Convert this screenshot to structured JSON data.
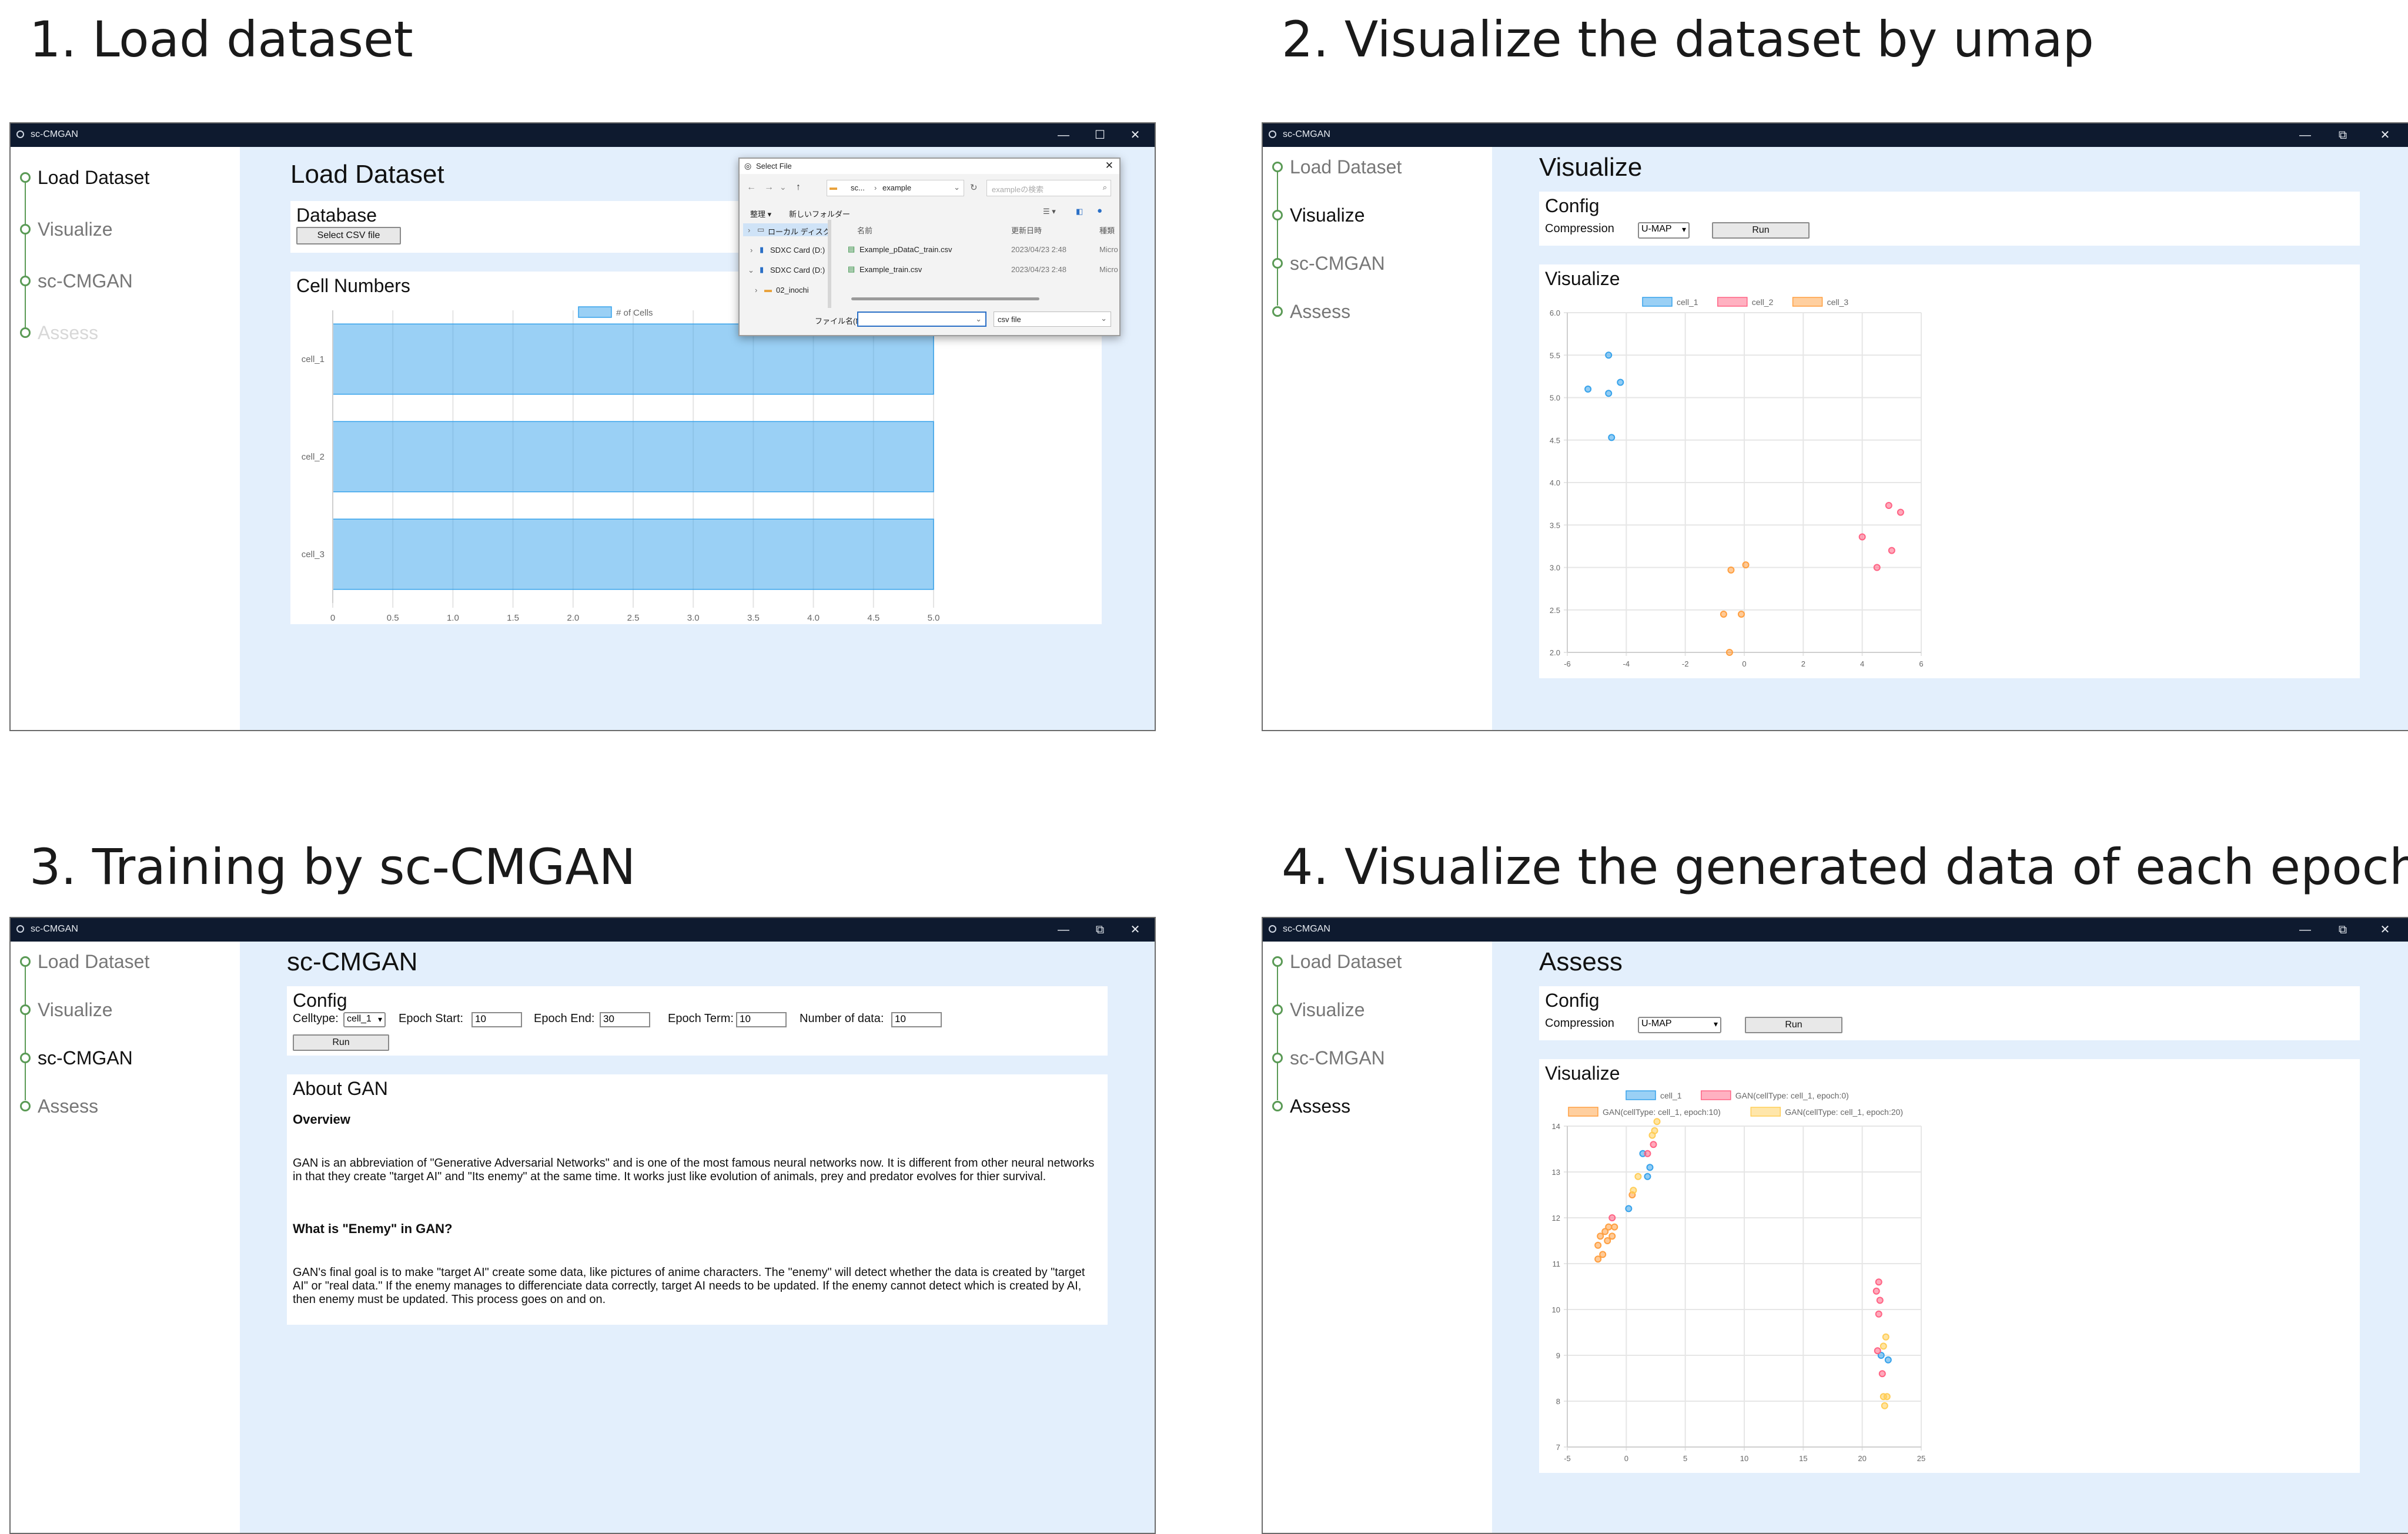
{
  "app_title": "sc-CMGAN",
  "window_controls": {
    "minimize": "—",
    "maximize": "☐",
    "restore": "⧉",
    "close": "✕"
  },
  "steps": [
    {
      "title": "1. Load dataset"
    },
    {
      "title": "2. Visualize the dataset by umap"
    },
    {
      "title": "3. Training by sc-CMGAN"
    },
    {
      "title": "4. Visualize the generated data of each epoch"
    }
  ],
  "nav": [
    "Load Dataset",
    "Visualize",
    "sc-CMGAN",
    "Assess"
  ],
  "colors": {
    "cell_1": "#36a2eb",
    "cell_2": "#ff6384",
    "cell_3": "#ff9f40",
    "gan_epoch20": "#ffcd56",
    "accent": "#5a9a55",
    "main_bg": "#e3effc"
  },
  "panel1": {
    "page_title": "Load Dataset",
    "database_title": "Database",
    "select_csv_label": "Select CSV file",
    "cell_numbers_title": "Cell Numbers",
    "dialog": {
      "title": "Select File",
      "path_1": "sc...",
      "path_2": "example",
      "search_placeholder": "exampleの検索",
      "organize": "整理 ▾",
      "new_folder": "新しいフォルダー",
      "col_name": "名前",
      "col_date": "更新日時",
      "col_type": "種類",
      "tree": [
        "ローカル ディスク",
        "SDXC Card (D:)",
        "SDXC Card (D:)",
        "02_inochi"
      ],
      "files": [
        {
          "name": "Example_pDataC_train.csv",
          "date": "2023/04/23 2:48",
          "type": "Micro"
        },
        {
          "name": "Example_train.csv",
          "date": "2023/04/23 2:48",
          "type": "Micro"
        }
      ],
      "filename_label": "ファイル名(N):",
      "filetype": "csv file"
    },
    "chart_data": {
      "type": "bar",
      "orientation": "horizontal",
      "categories": [
        "cell_1",
        "cell_2",
        "cell_3"
      ],
      "series": [
        {
          "name": "# of Cells",
          "values": [
            5,
            5,
            5
          ]
        }
      ],
      "xlim": [
        0,
        5
      ],
      "xticks": [
        "0",
        "0.5",
        "1.0",
        "1.5",
        "2.0",
        "2.5",
        "3.0",
        "3.5",
        "4.0",
        "4.5",
        "5.0"
      ],
      "grid": true,
      "legend": "top"
    }
  },
  "panel2": {
    "page_title": "Visualize",
    "config_title": "Config",
    "compression_label": "Compression",
    "compression_value": "U-MAP",
    "run_label": "Run",
    "visualize_title": "Visualize",
    "chart_data": {
      "type": "scatter",
      "series": [
        {
          "name": "cell_1",
          "points": [
            [
              -4.6,
              5.5
            ],
            [
              -4.2,
              5.18
            ],
            [
              -5.3,
              5.1
            ],
            [
              -4.6,
              5.05
            ],
            [
              -4.5,
              4.53
            ]
          ]
        },
        {
          "name": "cell_2",
          "points": [
            [
              4.9,
              3.73
            ],
            [
              5.3,
              3.65
            ],
            [
              4.0,
              3.36
            ],
            [
              5.0,
              3.2
            ],
            [
              4.5,
              3.0
            ]
          ]
        },
        {
          "name": "cell_3",
          "points": [
            [
              0.05,
              3.03
            ],
            [
              -0.45,
              2.97
            ],
            [
              -0.7,
              2.45
            ],
            [
              -0.1,
              2.45
            ],
            [
              -0.5,
              2.0
            ]
          ]
        }
      ],
      "xlim": [
        -6,
        6
      ],
      "ylim": [
        2.0,
        6.0
      ],
      "xticks": [
        "-6",
        "-4",
        "-2",
        "0",
        "2",
        "4",
        "6"
      ],
      "yticks": [
        "2.0",
        "2.5",
        "3.0",
        "3.5",
        "4.0",
        "4.5",
        "5.0",
        "5.5",
        "6.0"
      ],
      "grid": true,
      "legend": "top"
    }
  },
  "panel3": {
    "page_title": "sc-CMGAN",
    "config_title": "Config",
    "celltype_label": "Celltype:",
    "celltype_value": "cell_1",
    "epoch_start_label": "Epoch Start:",
    "epoch_start_value": "10",
    "epoch_end_label": "Epoch End:",
    "epoch_end_value": "30",
    "epoch_term_label": "Epoch Term:",
    "epoch_term_value": "10",
    "number_of_data_label": "Number of data:",
    "number_of_data_value": "10",
    "run_label": "Run",
    "about_title": "About GAN",
    "overview_heading": "Overview",
    "overview_text": "GAN is an abbreviation of \"Generative Adversarial Networks\" and is one of the most famous neural networks now. It is different from other neural networks in that they create \"target AI\" and \"Its enemy\" at the same time. It works just like evolution of animals, prey and predator evolves for thier survival.",
    "enemy_heading": "What is \"Enemy\" in GAN?",
    "enemy_text": "GAN's final goal is to make \"target AI\" create some data, like pictures of anime characters. The \"enemy\" will detect whether the data is created by \"target AI\" or \"real data.\" If the enemy manages to differenciate data correctly, target AI needs to be updated. If the enemy cannot detect which is created by AI, then enemy must be updated. This process goes on and on."
  },
  "panel4": {
    "page_title": "Assess",
    "config_title": "Config",
    "compression_label": "Compression",
    "compression_value": "U-MAP",
    "run_label": "Run",
    "visualize_title": "Visualize",
    "chart_data": {
      "type": "scatter",
      "series": [
        {
          "name": "cell_1",
          "points": [
            [
              1.4,
              13.4
            ],
            [
              2.0,
              13.1
            ],
            [
              1.8,
              12.9
            ],
            [
              0.2,
              12.2
            ],
            [
              22.2,
              8.9
            ],
            [
              21.6,
              9.0
            ]
          ]
        },
        {
          "name": "GAN(cellType: cell_1, epoch:0)",
          "points": [
            [
              1.8,
              13.4
            ],
            [
              2.3,
              13.6
            ],
            [
              -1.2,
              12.0
            ],
            [
              21.4,
              10.6
            ],
            [
              21.2,
              10.4
            ],
            [
              21.5,
              10.2
            ],
            [
              21.4,
              9.9
            ],
            [
              21.3,
              9.1
            ],
            [
              21.7,
              8.6
            ]
          ]
        },
        {
          "name": "GAN(cellType: cell_1, epoch:10)",
          "points": [
            [
              -2.4,
              11.4
            ],
            [
              -2.2,
              11.6
            ],
            [
              -1.8,
              11.7
            ],
            [
              -1.5,
              11.8
            ],
            [
              -1.2,
              11.6
            ],
            [
              -2.0,
              11.2
            ],
            [
              -2.4,
              11.1
            ],
            [
              -1.0,
              11.8
            ],
            [
              -1.6,
              11.5
            ],
            [
              0.5,
              12.5
            ]
          ]
        },
        {
          "name": "GAN(cellType: cell_1, epoch:20)",
          "points": [
            [
              2.4,
              13.9
            ],
            [
              2.6,
              14.1
            ],
            [
              2.2,
              13.8
            ],
            [
              1.0,
              12.9
            ],
            [
              0.6,
              12.6
            ],
            [
              21.8,
              9.2
            ],
            [
              22.0,
              9.4
            ],
            [
              22.1,
              8.1
            ],
            [
              21.8,
              8.1
            ],
            [
              21.9,
              7.9
            ]
          ]
        }
      ],
      "xlim": [
        -5,
        25
      ],
      "ylim": [
        7,
        14
      ],
      "xticks": [
        "-5",
        "0",
        "5",
        "10",
        "15",
        "20",
        "25"
      ],
      "yticks": [
        "7",
        "8",
        "9",
        "10",
        "11",
        "12",
        "13",
        "14"
      ],
      "grid": true,
      "legend": "top"
    }
  }
}
